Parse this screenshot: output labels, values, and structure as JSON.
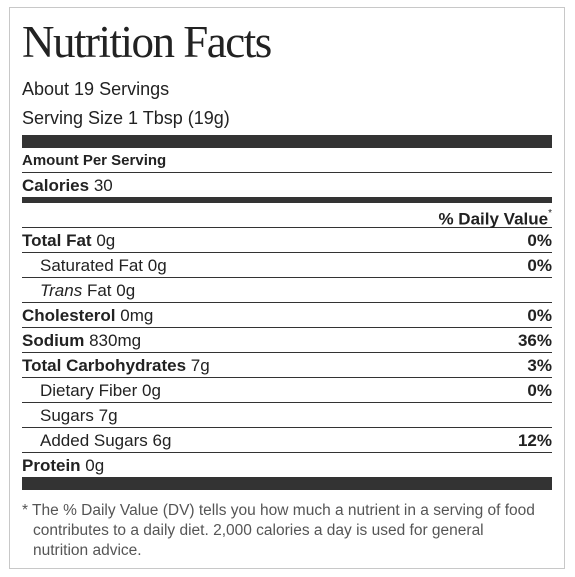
{
  "title": "Nutrition Facts",
  "servings": "About 19 Servings",
  "serving_size": "Serving Size 1 Tbsp (19g)",
  "amount_per_serving": "Amount Per Serving",
  "calories": {
    "label": "Calories",
    "amount": "30"
  },
  "daily_value_header": {
    "text": "% Daily Value",
    "mark": "*"
  },
  "rows": [
    {
      "name": "Total Fat",
      "amount": "0g",
      "percent": "0%",
      "subrows": [
        {
          "name": "Saturated Fat",
          "amount": "0g",
          "percent": "0%"
        },
        {
          "name_italic": "Trans",
          "name": "Fat",
          "amount": "0g"
        }
      ]
    },
    {
      "name": "Cholesterol",
      "amount": "0mg",
      "percent": "0%"
    },
    {
      "name": "Sodium",
      "amount": "830mg",
      "percent": "36%"
    },
    {
      "name": "Total Carbohydrates",
      "amount": "7g",
      "percent": "3%",
      "subrows": [
        {
          "name": "Dietary Fiber",
          "amount": "0g",
          "percent": "0%"
        },
        {
          "name": "Sugars",
          "amount": "7g"
        },
        {
          "name": "Added Sugars",
          "amount": "6g",
          "percent": "12%"
        }
      ]
    },
    {
      "name": "Protein",
      "amount": "0g"
    }
  ],
  "footnote": "* The % Daily Value (DV) tells you how much a nutrient in a serving of food contributes to a daily diet. 2,000 calories a day is used for general nutrition advice."
}
